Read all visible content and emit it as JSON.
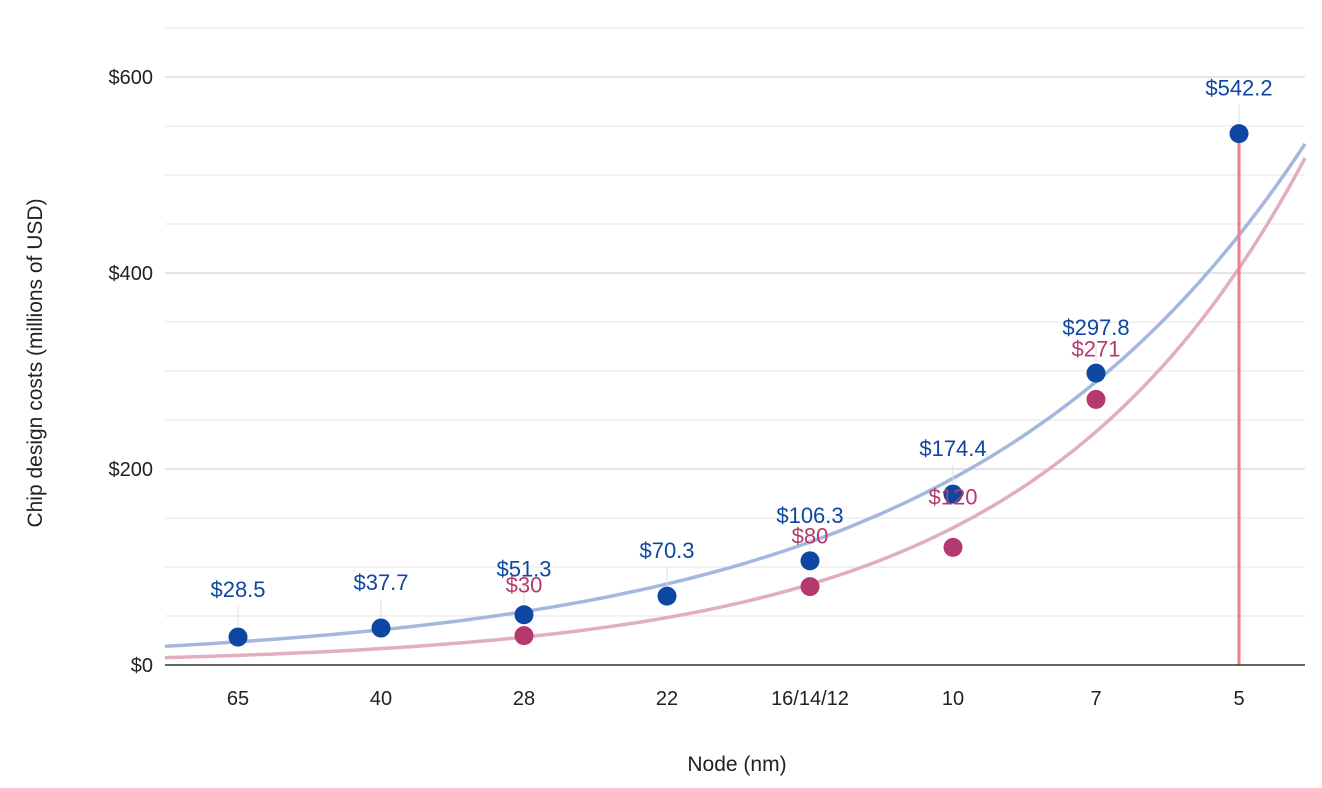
{
  "chart_data": {
    "type": "scatter",
    "title": "",
    "xlabel": "Node (nm)",
    "ylabel": "Chip design costs (millions of USD)",
    "categories": [
      "65",
      "40",
      "28",
      "22",
      "16/14/12",
      "10",
      "7",
      "5"
    ],
    "ylim": [
      0,
      600
    ],
    "yticks": [
      {
        "value": 0,
        "label": "$0"
      },
      {
        "value": 200,
        "label": "$200"
      },
      {
        "value": 400,
        "label": "$400"
      },
      {
        "value": 600,
        "label": "$600"
      }
    ],
    "grid": true,
    "series": [
      {
        "color": "#0d47a1",
        "trend_color": "#a4b8df",
        "values": [
          28.5,
          37.7,
          51.3,
          70.3,
          106.3,
          174.4,
          297.8,
          542.2
        ],
        "labels": [
          "$28.5",
          "$37.7",
          "$51.3",
          "$70.3",
          "$106.3",
          "$174.4",
          "$297.8",
          "$542.2"
        ],
        "trendline": "exponential"
      },
      {
        "color": "#b5386e",
        "trend_color": "#e2adbf",
        "values": [
          null,
          null,
          30,
          null,
          80,
          120,
          271,
          null
        ],
        "labels": [
          null,
          null,
          "$30",
          null,
          "$80",
          "$120",
          "$271",
          null
        ],
        "trendline": "exponential"
      }
    ],
    "reference_line": {
      "category": "5",
      "color": "#ef7f86"
    }
  }
}
